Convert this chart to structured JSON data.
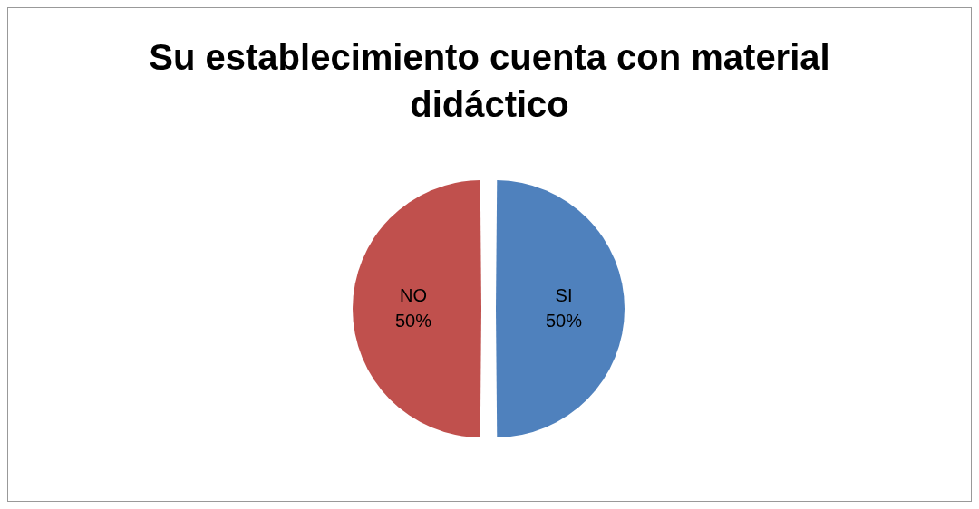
{
  "chart_data": {
    "type": "pie",
    "title": "Su establecimiento cuenta con material didáctico",
    "categories": [
      "SI",
      "NO"
    ],
    "values": [
      50,
      50
    ],
    "colors": [
      "#4f81bd",
      "#c0504d"
    ],
    "value_labels": [
      "50%",
      "50%"
    ],
    "legend": false
  }
}
